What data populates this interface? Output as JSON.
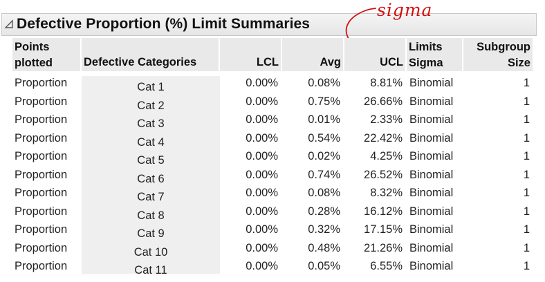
{
  "report": {
    "title": "Defective Proportion (%) Limit Summaries",
    "annotation": "sigma",
    "annotation_color": "#d21010"
  },
  "columns": {
    "points_plotted": [
      "Points",
      "plotted"
    ],
    "categories": "Defective Categories",
    "lcl": "LCL",
    "avg": "Avg",
    "ucl": "UCL",
    "limits_sigma": [
      "Limits",
      "Sigma"
    ],
    "subgroup_size": [
      "Subgroup",
      "Size"
    ]
  },
  "rows": [
    {
      "points": "Proportion",
      "category": "Cat 1",
      "lcl": "0.00%",
      "avg": "0.08%",
      "ucl": "8.81%",
      "sigma": "Binomial",
      "size": "1"
    },
    {
      "points": "Proportion",
      "category": "Cat 2",
      "lcl": "0.00%",
      "avg": "0.75%",
      "ucl": "26.66%",
      "sigma": "Binomial",
      "size": "1"
    },
    {
      "points": "Proportion",
      "category": "Cat 3",
      "lcl": "0.00%",
      "avg": "0.01%",
      "ucl": "2.33%",
      "sigma": "Binomial",
      "size": "1"
    },
    {
      "points": "Proportion",
      "category": "Cat 4",
      "lcl": "0.00%",
      "avg": "0.54%",
      "ucl": "22.42%",
      "sigma": "Binomial",
      "size": "1"
    },
    {
      "points": "Proportion",
      "category": "Cat 5",
      "lcl": "0.00%",
      "avg": "0.02%",
      "ucl": "4.25%",
      "sigma": "Binomial",
      "size": "1"
    },
    {
      "points": "Proportion",
      "category": "Cat 6",
      "lcl": "0.00%",
      "avg": "0.74%",
      "ucl": "26.52%",
      "sigma": "Binomial",
      "size": "1"
    },
    {
      "points": "Proportion",
      "category": "Cat 7",
      "lcl": "0.00%",
      "avg": "0.08%",
      "ucl": "8.32%",
      "sigma": "Binomial",
      "size": "1"
    },
    {
      "points": "Proportion",
      "category": "Cat 8",
      "lcl": "0.00%",
      "avg": "0.28%",
      "ucl": "16.12%",
      "sigma": "Binomial",
      "size": "1"
    },
    {
      "points": "Proportion",
      "category": "Cat 9",
      "lcl": "0.00%",
      "avg": "0.32%",
      "ucl": "17.15%",
      "sigma": "Binomial",
      "size": "1"
    },
    {
      "points": "Proportion",
      "category": "Cat 10",
      "lcl": "0.00%",
      "avg": "0.48%",
      "ucl": "21.26%",
      "sigma": "Binomial",
      "size": "1"
    },
    {
      "points": "Proportion",
      "category": "Cat 11",
      "lcl": "0.00%",
      "avg": "0.05%",
      "ucl": "6.55%",
      "sigma": "Binomial",
      "size": "1"
    }
  ]
}
